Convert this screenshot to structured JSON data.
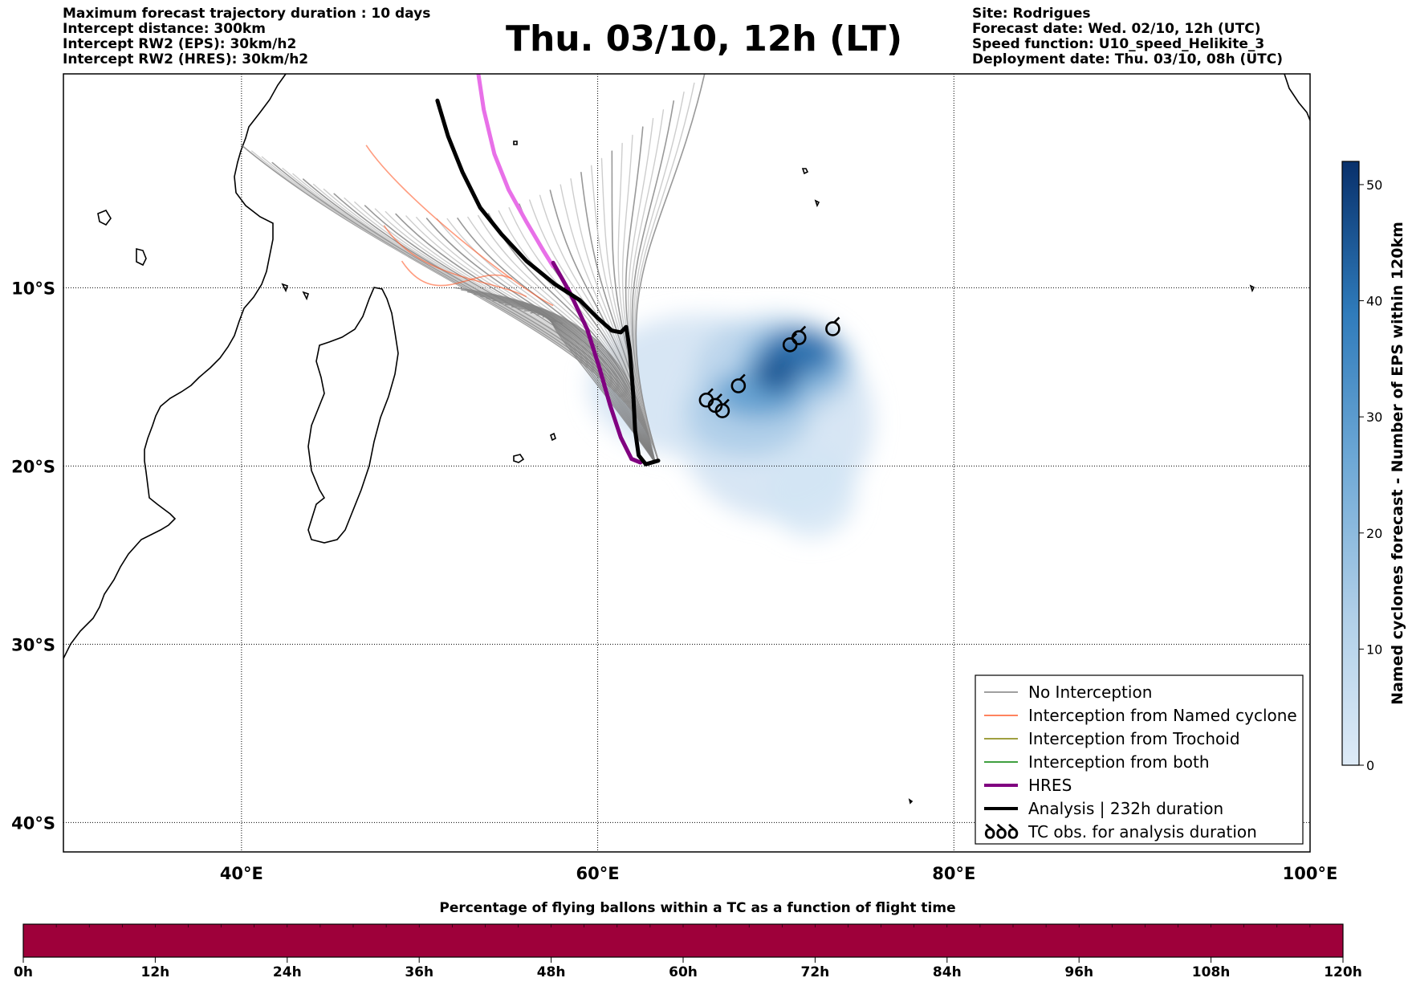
{
  "header": {
    "left": [
      "Maximum forecast trajectory duration : 10 days",
      "Intercept distance: 300km",
      "Intercept RW2 (EPS):  30km/h2",
      "Intercept RW2 (HRES): 30km/h2"
    ],
    "title": "Thu. 03/10, 12h (LT)",
    "right": [
      "Site: Rodrigues",
      "Forecast date: Wed. 02/10, 12h (UTC)",
      "Speed function: U10_speed_Helikite_3",
      "Deployment date: Thu. 03/10, 08h (UTC)"
    ]
  },
  "map": {
    "lon_range": [
      30,
      100
    ],
    "lat_range": [
      -40,
      2
    ],
    "lon_ticks": [
      {
        "value": 40,
        "label": "40°E"
      },
      {
        "value": 60,
        "label": "60°E"
      },
      {
        "value": 80,
        "label": "80°E"
      },
      {
        "value": 100,
        "label": "100°E"
      }
    ],
    "lat_ticks": [
      {
        "value": -10,
        "label": "10°S"
      },
      {
        "value": -20,
        "label": "20°S"
      },
      {
        "value": -30,
        "label": "30°S"
      },
      {
        "value": -40,
        "label": "40°S"
      }
    ],
    "deployment_site": {
      "lon": 63.4,
      "lat": -19.7
    },
    "analysis_track": [
      [
        51.0,
        0.5
      ],
      [
        51.6,
        -1.5
      ],
      [
        52.4,
        -3.5
      ],
      [
        53.4,
        -5.5
      ],
      [
        54.6,
        -7.0
      ],
      [
        56.0,
        -8.5
      ],
      [
        57.6,
        -9.8
      ],
      [
        59.0,
        -10.7
      ],
      [
        60.0,
        -11.7
      ],
      [
        60.8,
        -12.4
      ],
      [
        61.3,
        -12.5
      ],
      [
        61.6,
        -12.2
      ],
      [
        61.8,
        -13.5
      ],
      [
        62.0,
        -16.0
      ],
      [
        62.1,
        -18.0
      ],
      [
        62.3,
        -19.4
      ],
      [
        62.7,
        -19.9
      ],
      [
        63.4,
        -19.7
      ]
    ],
    "hres_track": [
      [
        53.3,
        2.0
      ],
      [
        53.6,
        0.0
      ],
      [
        54.2,
        -2.5
      ],
      [
        55.0,
        -4.5
      ],
      [
        56.0,
        -6.3
      ],
      [
        57.0,
        -8.0
      ],
      [
        57.5,
        -8.8
      ]
    ],
    "hres_track_dark": [
      [
        57.5,
        -8.6
      ],
      [
        58.4,
        -10.2
      ],
      [
        59.4,
        -12.3
      ],
      [
        60.1,
        -14.5
      ],
      [
        60.7,
        -16.6
      ],
      [
        61.3,
        -18.4
      ],
      [
        61.9,
        -19.6
      ],
      [
        62.4,
        -19.8
      ]
    ],
    "tc_obs": [
      [
        70.8,
        -13.2
      ],
      [
        71.3,
        -12.8
      ],
      [
        73.2,
        -12.3
      ],
      [
        67.9,
        -15.5
      ],
      [
        66.1,
        -16.3
      ],
      [
        66.6,
        -16.6
      ],
      [
        67.0,
        -16.9
      ]
    ],
    "eps_density_blobs": [
      {
        "lon": 66.0,
        "lat": -15.5,
        "rx": 6.5,
        "ry": 4.0,
        "value": 4
      },
      {
        "lon": 70.0,
        "lat": -17.5,
        "rx": 5.5,
        "ry": 5.5,
        "value": 4
      },
      {
        "lon": 72.0,
        "lat": -21.5,
        "rx": 2.5,
        "ry": 2.5,
        "value": 3
      },
      {
        "lon": 70.0,
        "lat": -14.5,
        "rx": 4.5,
        "ry": 3.0,
        "value": 10
      },
      {
        "lon": 68.5,
        "lat": -17.0,
        "rx": 3.5,
        "ry": 2.5,
        "value": 14
      },
      {
        "lon": 71.0,
        "lat": -14.2,
        "rx": 3.0,
        "ry": 2.0,
        "value": 25
      },
      {
        "lon": 69.0,
        "lat": -16.0,
        "rx": 2.5,
        "ry": 1.3,
        "value": 30
      },
      {
        "lon": 71.3,
        "lat": -13.6,
        "rx": 2.0,
        "ry": 1.3,
        "value": 42
      },
      {
        "lon": 70.0,
        "lat": -14.8,
        "rx": 1.3,
        "ry": 1.1,
        "value": 46
      }
    ]
  },
  "legend": {
    "items": [
      {
        "label": "No Interception",
        "color": "#808080",
        "width": 1.5
      },
      {
        "label": "Interception from Named cyclone",
        "color": "#ff5a2a",
        "width": 1.5
      },
      {
        "label": "Interception from Trochoid",
        "color": "#808000",
        "width": 1.5
      },
      {
        "label": "Interception from both",
        "color": "#008000",
        "width": 1.5
      },
      {
        "label": "HRES",
        "color": "#800080",
        "width": 4
      },
      {
        "label": "Analysis | 232h duration",
        "color": "#000000",
        "width": 4
      },
      {
        "label": "TC obs. for analysis duration",
        "color": "#000000",
        "width": 0,
        "glyph": "ꝺꝺꝺ"
      }
    ]
  },
  "colorbar": {
    "label": "Named cyclones forecast - Number of EPS within 120km",
    "range": [
      0,
      52
    ],
    "ticks": [
      0,
      10,
      20,
      30,
      40,
      50
    ],
    "color_low": "#deebf7",
    "color_high": "#08306b"
  },
  "timebar": {
    "title": "Percentage of flying ballons within a TC as a function of flight time",
    "color": "#9e003a",
    "range_hours": [
      0,
      120
    ],
    "ticks": [
      "0h",
      "12h",
      "24h",
      "36h",
      "48h",
      "60h",
      "72h",
      "84h",
      "96h",
      "108h",
      "120h"
    ]
  },
  "colors": {
    "no_interception": "#808080",
    "named_cyclone": "#ff5a2a",
    "hres": "#800080",
    "hres_light": "#e870e8",
    "analysis": "#000000",
    "grey_tracks": "#c8c8c8"
  }
}
